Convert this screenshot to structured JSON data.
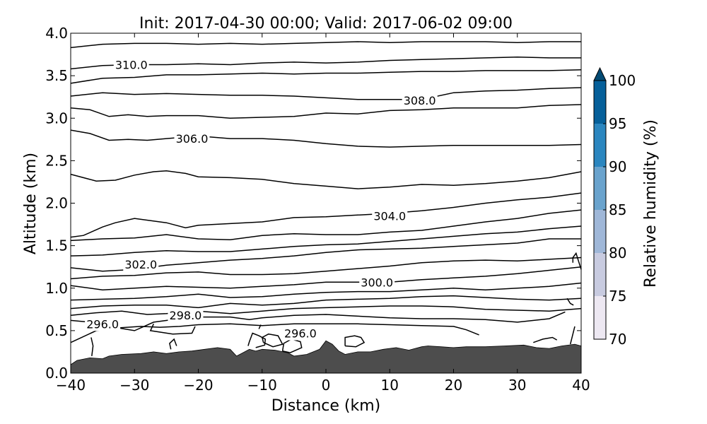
{
  "chart_data": {
    "type": "contour",
    "title": "Init: 2017-04-30 00:00; Valid: 2017-06-02 09:00",
    "xlabel": "Distance (km)",
    "ylabel": "Altitude (km)",
    "xlim": [
      -40,
      40
    ],
    "ylim": [
      0,
      4
    ],
    "xticks": [
      -40,
      -30,
      -20,
      -10,
      0,
      10,
      20,
      30,
      40
    ],
    "xtick_labels": [
      "−40",
      "−30",
      "−20",
      "−10",
      "0",
      "10",
      "20",
      "30",
      "40"
    ],
    "yticks": [
      0,
      0.5,
      1,
      1.5,
      2,
      2.5,
      3,
      3.5,
      4
    ],
    "ytick_labels": [
      "0.0",
      "0.5",
      "1.0",
      "1.5",
      "2.0",
      "2.5",
      "3.0",
      "3.5",
      "4.0"
    ],
    "grid": false,
    "terrain": {
      "color": "#4d4d4d",
      "x": [
        -40,
        -39,
        -37,
        -35,
        -34,
        -32,
        -29,
        -27,
        -25,
        -23,
        -21,
        -19,
        -17,
        -15,
        -14,
        -13,
        -12,
        -11,
        -10,
        -8,
        -6,
        -5,
        -3,
        -1,
        0,
        1,
        2,
        3,
        5,
        7,
        9,
        11,
        13,
        15,
        16,
        18,
        20,
        22,
        25,
        28,
        31,
        33,
        35,
        37,
        39,
        40
      ],
      "y": [
        0.1,
        0.15,
        0.18,
        0.17,
        0.2,
        0.22,
        0.23,
        0.25,
        0.23,
        0.25,
        0.26,
        0.28,
        0.3,
        0.28,
        0.2,
        0.24,
        0.28,
        0.26,
        0.28,
        0.27,
        0.24,
        0.2,
        0.22,
        0.28,
        0.38,
        0.34,
        0.26,
        0.22,
        0.25,
        0.25,
        0.28,
        0.3,
        0.27,
        0.31,
        0.32,
        0.31,
        0.3,
        0.31,
        0.31,
        0.32,
        0.33,
        0.3,
        0.29,
        0.32,
        0.34,
        0.32
      ]
    },
    "contour_levels_labeled": [
      {
        "text": "310.0",
        "x": -30.5,
        "y": 3.63
      },
      {
        "text": "308.0",
        "x": 14.7,
        "y": 3.21
      },
      {
        "text": "306.0",
        "x": -21,
        "y": 2.76
      },
      {
        "text": "304.0",
        "x": 10,
        "y": 1.85
      },
      {
        "text": "302.0",
        "x": -29,
        "y": 1.28
      },
      {
        "text": "300.0",
        "x": 8,
        "y": 1.07
      },
      {
        "text": "298.0",
        "x": -22,
        "y": 0.68
      },
      {
        "text": "296.0",
        "x": -35,
        "y": 0.58
      },
      {
        "text": "296.0",
        "x": -4,
        "y": 0.47
      }
    ],
    "contours": [
      {
        "x": [
          -40,
          -35,
          -30,
          -25,
          -20,
          -15,
          -10,
          -5,
          0,
          5,
          10,
          15,
          20,
          25,
          30,
          35,
          40
        ],
        "y": [
          3.83,
          3.87,
          3.88,
          3.88,
          3.87,
          3.88,
          3.87,
          3.88,
          3.89,
          3.9,
          3.89,
          3.9,
          3.9,
          3.9,
          3.89,
          3.9,
          3.9
        ]
      },
      {
        "x": [
          -40,
          -35,
          -30,
          -25,
          -20,
          -15,
          -10,
          -5,
          0,
          5,
          10,
          15,
          20,
          25,
          30,
          35,
          40
        ],
        "y": [
          3.58,
          3.62,
          3.63,
          3.63,
          3.64,
          3.63,
          3.65,
          3.66,
          3.65,
          3.66,
          3.68,
          3.69,
          3.7,
          3.71,
          3.72,
          3.71,
          3.71
        ]
      },
      {
        "x": [
          -40,
          -35,
          -30,
          -25,
          -20,
          -15,
          -10,
          -5,
          0,
          5,
          10,
          15,
          20,
          25,
          30,
          35,
          40
        ],
        "y": [
          3.41,
          3.47,
          3.48,
          3.51,
          3.51,
          3.52,
          3.53,
          3.52,
          3.53,
          3.53,
          3.54,
          3.55,
          3.55,
          3.56,
          3.56,
          3.56,
          3.57
        ]
      },
      {
        "x": [
          -40,
          -35,
          -30,
          -25,
          -20,
          -15,
          -10,
          -5,
          0,
          5,
          10,
          15,
          20,
          25,
          30,
          35,
          40
        ],
        "y": [
          3.26,
          3.3,
          3.28,
          3.29,
          3.28,
          3.27,
          3.27,
          3.26,
          3.24,
          3.22,
          3.22,
          3.22,
          3.3,
          3.32,
          3.33,
          3.35,
          3.36
        ]
      },
      {
        "x": [
          -40,
          -37,
          -34,
          -31,
          -28,
          -25,
          -20,
          -15,
          -10,
          -5,
          0,
          5,
          10,
          15,
          20,
          25,
          30,
          35,
          40
        ],
        "y": [
          3.12,
          3.1,
          3.02,
          3.04,
          3.02,
          3.03,
          3.03,
          3.0,
          3.01,
          3.02,
          3.06,
          3.05,
          3.09,
          3.1,
          3.12,
          3.12,
          3.12,
          3.15,
          3.16
        ]
      },
      {
        "x": [
          -40,
          -37,
          -34,
          -31,
          -28,
          -25,
          -20,
          -15,
          -10,
          -5,
          0,
          5,
          10,
          15,
          20,
          25,
          30,
          35,
          40
        ],
        "y": [
          2.86,
          2.82,
          2.74,
          2.75,
          2.74,
          2.76,
          2.79,
          2.76,
          2.76,
          2.74,
          2.7,
          2.67,
          2.66,
          2.67,
          2.68,
          2.68,
          2.68,
          2.68,
          2.69
        ]
      },
      {
        "x": [
          -40,
          -36,
          -33,
          -30,
          -27,
          -25,
          -22,
          -20,
          -15,
          -10,
          -5,
          0,
          5,
          10,
          15,
          20,
          25,
          30,
          35,
          40
        ],
        "y": [
          2.34,
          2.26,
          2.27,
          2.33,
          2.37,
          2.38,
          2.35,
          2.31,
          2.3,
          2.28,
          2.23,
          2.2,
          2.17,
          2.19,
          2.22,
          2.21,
          2.23,
          2.26,
          2.3,
          2.37
        ]
      },
      {
        "x": [
          -40,
          -38,
          -35,
          -33,
          -30,
          -25,
          -22,
          -20,
          -15,
          -10,
          -5,
          0,
          5,
          10,
          15,
          20,
          25,
          30,
          35,
          40
        ],
        "y": [
          1.6,
          1.62,
          1.72,
          1.77,
          1.82,
          1.77,
          1.71,
          1.74,
          1.76,
          1.78,
          1.83,
          1.84,
          1.86,
          1.88,
          1.91,
          1.95,
          2.0,
          2.04,
          2.07,
          2.12
        ]
      },
      {
        "x": [
          -40,
          -35,
          -30,
          -25,
          -20,
          -15,
          -10,
          -5,
          0,
          5,
          10,
          15,
          20,
          25,
          30,
          35,
          40
        ],
        "y": [
          1.56,
          1.58,
          1.59,
          1.63,
          1.58,
          1.57,
          1.62,
          1.64,
          1.63,
          1.63,
          1.66,
          1.68,
          1.73,
          1.78,
          1.82,
          1.88,
          1.92
        ]
      },
      {
        "x": [
          -40,
          -35,
          -30,
          -25,
          -20,
          -15,
          -10,
          -5,
          0,
          5,
          10,
          15,
          20,
          25,
          30,
          35,
          40
        ],
        "y": [
          1.38,
          1.39,
          1.42,
          1.44,
          1.43,
          1.43,
          1.46,
          1.49,
          1.51,
          1.52,
          1.55,
          1.58,
          1.61,
          1.64,
          1.66,
          1.7,
          1.73
        ]
      },
      {
        "x": [
          -40,
          -35,
          -30,
          -25,
          -20,
          -15,
          -10,
          -5,
          0,
          5,
          10,
          15,
          20,
          25,
          30,
          35,
          40
        ],
        "y": [
          1.24,
          1.2,
          1.22,
          1.27,
          1.3,
          1.33,
          1.35,
          1.38,
          1.42,
          1.45,
          1.46,
          1.47,
          1.49,
          1.51,
          1.53,
          1.58,
          1.58
        ]
      },
      {
        "x": [
          -40,
          -35,
          -30,
          -25,
          -20,
          -15,
          -10,
          -5,
          0,
          5,
          10,
          15,
          20,
          25,
          30,
          35,
          40
        ],
        "y": [
          1.11,
          1.14,
          1.15,
          1.18,
          1.19,
          1.16,
          1.16,
          1.17,
          1.2,
          1.23,
          1.26,
          1.3,
          1.32,
          1.33,
          1.32,
          1.34,
          1.36
        ]
      },
      {
        "x": [
          -40,
          -35,
          -30,
          -25,
          -20,
          -15,
          -10,
          -5,
          0,
          5,
          10,
          15,
          20,
          25,
          30,
          35,
          40
        ],
        "y": [
          1.03,
          0.98,
          1.0,
          1.02,
          1.01,
          1.0,
          1.02,
          1.04,
          1.07,
          1.07,
          1.07,
          1.1,
          1.12,
          1.14,
          1.17,
          1.21,
          1.25
        ]
      },
      {
        "x": [
          -40,
          -35,
          -30,
          -25,
          -20,
          -15,
          -10,
          -5,
          0,
          5,
          10,
          15,
          20,
          25,
          30,
          35,
          40
        ],
        "y": [
          0.86,
          0.87,
          0.88,
          0.9,
          0.93,
          0.89,
          0.9,
          0.93,
          0.95,
          0.96,
          0.96,
          0.98,
          1.0,
          0.98,
          1.0,
          1.02,
          1.06
        ]
      },
      {
        "x": [
          -40,
          -35,
          -30,
          -25,
          -20,
          -15,
          -10,
          -5,
          0,
          5,
          10,
          15,
          20,
          25,
          30,
          35,
          40
        ],
        "y": [
          0.76,
          0.79,
          0.8,
          0.8,
          0.77,
          0.82,
          0.8,
          0.82,
          0.86,
          0.87,
          0.88,
          0.9,
          0.91,
          0.89,
          0.87,
          0.86,
          0.88
        ]
      },
      {
        "x": [
          -40,
          -36,
          -32,
          -28,
          -25,
          -20,
          -15,
          -10,
          -5,
          0,
          5,
          10,
          15,
          20,
          25,
          30,
          35,
          40
        ],
        "y": [
          0.68,
          0.71,
          0.73,
          0.69,
          0.7,
          0.73,
          0.7,
          0.73,
          0.76,
          0.77,
          0.78,
          0.79,
          0.79,
          0.78,
          0.75,
          0.74,
          0.73,
          0.76
        ]
      },
      {
        "x": [
          -40,
          -37,
          -34,
          -30,
          -27,
          -24,
          -20,
          -15,
          -12,
          -10,
          -5,
          0,
          5,
          10,
          15,
          20,
          25,
          30,
          35,
          37.5
        ],
        "y": [
          0.62,
          0.6,
          0.55,
          0.5,
          0.6,
          0.63,
          0.66,
          0.66,
          0.63,
          0.65,
          0.68,
          0.69,
          0.67,
          0.65,
          0.64,
          0.64,
          0.63,
          0.6,
          0.64,
          0.72
        ]
      },
      {
        "x": [
          -40,
          -36,
          -33,
          -29,
          -26,
          -23,
          -20,
          -15,
          -10,
          -5,
          0,
          5,
          10,
          15,
          20,
          22,
          24
        ],
        "y": [
          0.36,
          0.5,
          0.53,
          0.55,
          0.54,
          0.55,
          0.57,
          0.58,
          0.56,
          0.58,
          0.58,
          0.58,
          0.57,
          0.56,
          0.55,
          0.51,
          0.45
        ]
      },
      {
        "x": [
          -27,
          -27.5,
          -24,
          -21,
          -20.5
        ],
        "y": [
          0.58,
          0.5,
          0.46,
          0.47,
          0.55
        ]
      },
      {
        "x": [
          -12.2,
          -12,
          -11.5,
          -10.5,
          -9.5,
          -9.6,
          -11
        ],
        "y": [
          0.32,
          0.37,
          0.47,
          0.44,
          0.4,
          0.33,
          0.3
        ]
      },
      {
        "x": [
          -9.8,
          -10,
          -9,
          -7.5,
          -6.8,
          -8.3,
          -9.8
        ],
        "y": [
          0.36,
          0.42,
          0.46,
          0.44,
          0.34,
          0.31,
          0.36
        ]
      },
      {
        "x": [
          -6.8,
          -6.6,
          -5.4,
          -4,
          -3.8,
          -5.6,
          -6.8
        ],
        "y": [
          0.26,
          0.35,
          0.4,
          0.37,
          0.3,
          0.24,
          0.26
        ]
      },
      {
        "x": [
          3,
          3,
          4.5,
          5.5,
          6,
          4.7,
          3
        ],
        "y": [
          0.32,
          0.42,
          0.44,
          0.42,
          0.36,
          0.31,
          0.32
        ]
      },
      {
        "x": [
          -24.3,
          -24.5,
          -23.8,
          -23.4
        ],
        "y": [
          0.28,
          0.35,
          0.4,
          0.32
        ]
      },
      {
        "x": [
          -36.7,
          -36.5,
          -36.8
        ],
        "y": [
          0.2,
          0.32,
          0.42
        ]
      },
      {
        "x": [
          -10.5,
          -10.2
        ],
        "y": [
          0.52,
          0.57
        ]
      },
      {
        "x": [
          32.5,
          34,
          35.5,
          36.2
        ],
        "y": [
          0.36,
          0.4,
          0.42,
          0.39
        ]
      },
      {
        "x": [
          38.3,
          38.6,
          39
        ],
        "y": [
          0.34,
          0.43,
          0.55
        ]
      },
      {
        "x": [
          38.7,
          38.7,
          39.2,
          40
        ],
        "y": [
          1.3,
          1.36,
          1.41,
          1.22
        ]
      },
      {
        "x": [
          37.8,
          38.3,
          38.8
        ],
        "y": [
          0.88,
          0.82,
          0.8
        ]
      }
    ],
    "colorbar": {
      "label": "Relative humidity (%)",
      "ticks": [
        70,
        75,
        80,
        85,
        90,
        95,
        100
      ],
      "extend": "max",
      "bins": [
        {
          "from": 70,
          "to": 75,
          "color": "#ede8f2"
        },
        {
          "from": 75,
          "to": 80,
          "color": "#c8cbe0"
        },
        {
          "from": 80,
          "to": 85,
          "color": "#9fb7d8"
        },
        {
          "from": 85,
          "to": 90,
          "color": "#6aa3cd"
        },
        {
          "from": 90,
          "to": 95,
          "color": "#2b86bf"
        },
        {
          "from": 95,
          "to": 100,
          "color": "#06609a"
        }
      ],
      "extend_color": "#034a73"
    }
  }
}
